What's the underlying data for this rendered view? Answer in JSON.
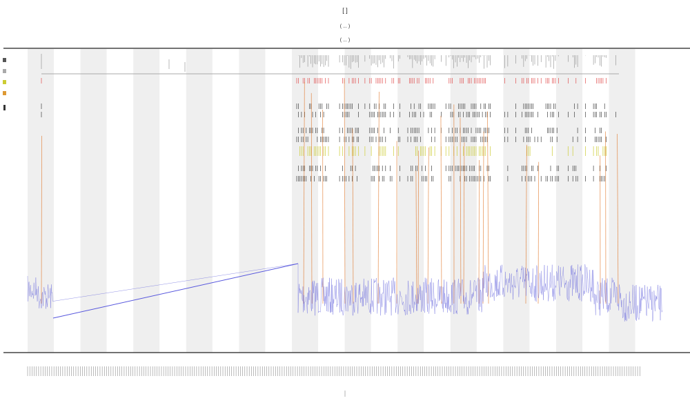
{
  "header": {
    "title": "[ ]",
    "subtitle_1": "( ... )",
    "subtitle_2": "( ... )"
  },
  "annotations": {
    "label_1": "",
    "label_2": ""
  },
  "chart_data": {
    "type": "line",
    "title": "[ ]",
    "xlabel": "",
    "ylabel": "",
    "grid": false,
    "band_shading": "alternating",
    "legend_placement": "top-left",
    "series": [
      {
        "color": "#6b6bdd",
        "style": "line"
      },
      {
        "color": "#e07020",
        "style": "spikes"
      },
      {
        "color": "#dd3333",
        "style": "ticks"
      },
      {
        "color": "#222222",
        "style": "ticks"
      },
      {
        "color": "#cccc33",
        "style": "ticks"
      }
    ],
    "values_readable": false
  },
  "colors": {
    "band": "#efefef",
    "axis": "#444444",
    "main_line": "#6b6bdd",
    "spike": "#e07020",
    "red_tick": "#dd3333",
    "black_tick": "#222222",
    "yellow_tick": "#cccc33",
    "overview_line": "#aaaaaa"
  }
}
